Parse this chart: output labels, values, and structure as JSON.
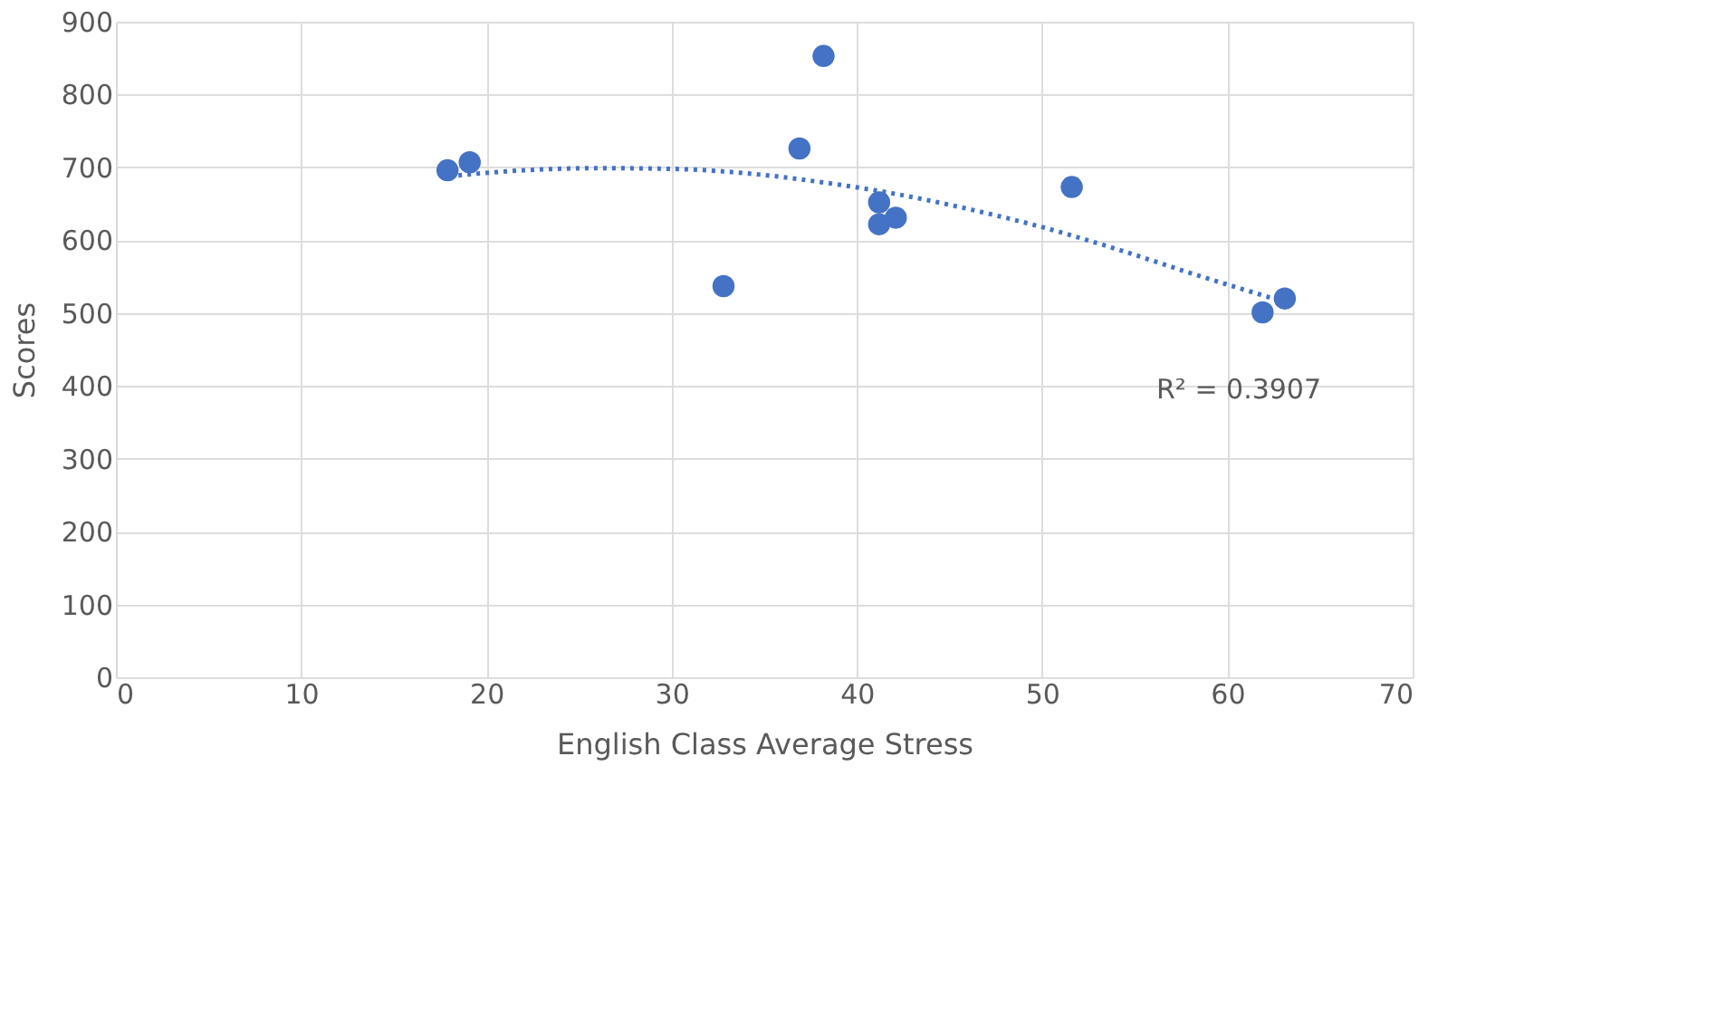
{
  "chart_data": {
    "type": "scatter",
    "xlabel": "English Class Average Stress",
    "ylabel": "Scores",
    "xlim": [
      0,
      70
    ],
    "xticks": [
      0,
      10,
      20,
      30,
      40,
      50,
      60,
      70
    ],
    "ylim": [
      0,
      900
    ],
    "yticks": [
      0,
      100,
      200,
      300,
      400,
      500,
      600,
      700,
      800,
      900
    ],
    "grid": true,
    "series": [
      {
        "marker": "circle",
        "color": "#4472c4",
        "x": [
          17.9,
          19.1,
          32.8,
          36.9,
          38.2,
          41.2,
          41.2,
          42.1,
          51.6,
          61.9,
          63.1
        ],
        "values": [
          696,
          707,
          537,
          726,
          853,
          652,
          622,
          631,
          673,
          501,
          520
        ]
      },
      {
        "type": "line",
        "color": "#4472c4",
        "line_style": "dotted",
        "x": [
          18,
          22,
          26,
          30,
          34,
          38,
          42,
          46,
          50,
          54,
          58,
          63
        ],
        "values": [
          688,
          696,
          699,
          698,
          692,
          680,
          664,
          643,
          618,
          588,
          555,
          516
        ]
      }
    ],
    "annotations": [
      "R² = 0.3907"
    ]
  }
}
